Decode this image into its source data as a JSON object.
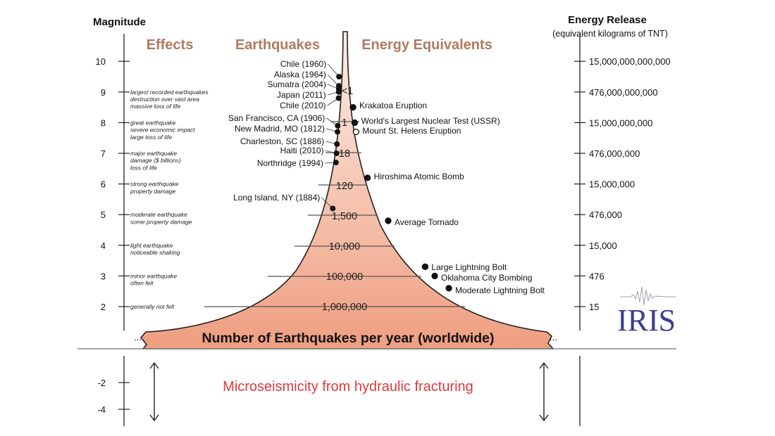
{
  "headers": {
    "magnitude": "Magnitude",
    "energy_release": "Energy Release",
    "energy_release_sub": "(equivalent kilograms of TNT)"
  },
  "column_titles": {
    "effects": "Effects",
    "earthquakes": "Earthquakes",
    "energy_equivalents": "Energy Equivalents"
  },
  "magnitude_ticks": [
    {
      "mag": 10,
      "label": "10",
      "energy": "15,000,000,000,000",
      "effect": []
    },
    {
      "mag": 9,
      "label": "9",
      "energy": "476,000,000,000",
      "effect": [
        "largest recorded earthquakes",
        "destruction over vast area",
        "massive loss of life"
      ]
    },
    {
      "mag": 8,
      "label": "8",
      "energy": "15,000,000,000",
      "effect": [
        "great earthquake",
        "severe economic impact",
        "large loss of life"
      ]
    },
    {
      "mag": 7,
      "label": "7",
      "energy": "476,000,000",
      "effect": [
        "major earthquake",
        "damage ($ billions)",
        "loss of life"
      ]
    },
    {
      "mag": 6,
      "label": "6",
      "energy": "15,000,000",
      "effect": [
        "strong earthquake",
        "property damage"
      ]
    },
    {
      "mag": 5,
      "label": "5",
      "energy": "476,000",
      "effect": [
        "moderate earthquake",
        "some property damage"
      ]
    },
    {
      "mag": 4,
      "label": "4",
      "energy": "15,000",
      "effect": [
        "light earthquake",
        "noticeable shaking"
      ]
    },
    {
      "mag": 3,
      "label": "3",
      "energy": "476",
      "effect": [
        "minor earthquake",
        "often felt"
      ]
    },
    {
      "mag": 2,
      "label": "2",
      "energy": "15",
      "effect": [
        "generally not felt"
      ]
    }
  ],
  "negative_ticks": [
    {
      "mag": -2,
      "label": "-2"
    },
    {
      "mag": -4,
      "label": "-4"
    }
  ],
  "earthquakes": [
    {
      "name": "Chile (1960)",
      "mag": 9.5
    },
    {
      "name": "Alaska (1964)",
      "mag": 9.2
    },
    {
      "name": "Sumatra (2004)",
      "mag": 9.1
    },
    {
      "name": "Japan (2011)",
      "mag": 9.0
    },
    {
      "name": "Chile (2010)",
      "mag": 8.8
    },
    {
      "name": "San Francisco, CA (1906)",
      "mag": 7.9
    },
    {
      "name": "New Madrid, MO (1812)",
      "mag": 7.7
    },
    {
      "name": "Charleston, SC (1886)",
      "mag": 7.3
    },
    {
      "name": "Haiti (2010)",
      "mag": 7.0
    },
    {
      "name": "Northridge (1994)",
      "mag": 6.7
    },
    {
      "name": "Long Island, NY (1884)",
      "mag": 5.2
    }
  ],
  "energy_equivalents": [
    {
      "name": "Krakatoa Eruption",
      "mag": 8.5,
      "open": false
    },
    {
      "name": "World's Largest Nuclear Test (USSR)",
      "mag": 8.0,
      "open": false
    },
    {
      "name": "Mount St. Helens Eruption",
      "mag": 7.7,
      "open": true
    },
    {
      "name": "Hiroshima Atomic Bomb",
      "mag": 6.2,
      "open": false
    },
    {
      "name": "Average Tornado",
      "mag": 4.8,
      "open": false
    },
    {
      "name": "Large Lightning Bolt",
      "mag": 3.3,
      "open": false
    },
    {
      "name": "Oklahoma City Bombing",
      "mag": 3.0,
      "open": false
    },
    {
      "name": "Moderate Lightning Bolt",
      "mag": 2.6,
      "open": false
    }
  ],
  "frequency_labels": [
    {
      "label": "<1",
      "mag": 9
    },
    {
      "label": "1",
      "mag": 8
    },
    {
      "label": "18",
      "mag": 7
    },
    {
      "label": "120",
      "mag": 6
    },
    {
      "label": "1,500",
      "mag": 5
    },
    {
      "label": "10,000",
      "mag": 4
    },
    {
      "label": "100,000",
      "mag": 3
    },
    {
      "label": "1,000,000",
      "mag": 2
    }
  ],
  "bottom_label": "Number of Earthquakes per year (worldwide)",
  "microseismicity_label": "Microseismicity from hydraulic fracturing",
  "logo_text": "IRIS",
  "colors": {
    "column_title": "#b07a60",
    "funnel_top": "#fdeee6",
    "funnel_bottom": "#ef9e80",
    "micro_text": "#e03a3a",
    "logo": "#3a3f8e"
  }
}
